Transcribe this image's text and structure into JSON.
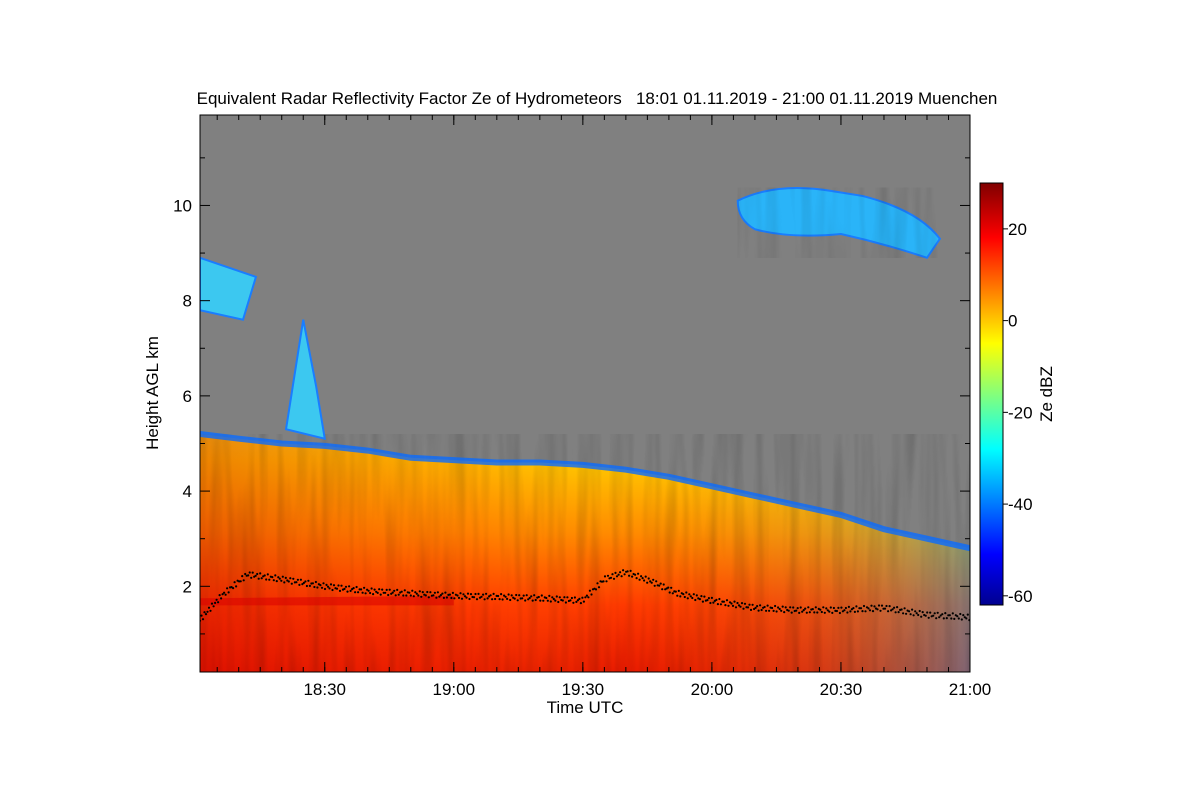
{
  "chart_data": {
    "type": "heatmap",
    "title": "Equivalent Radar Reflectivity Factor Ze of Hydrometeors   18:01 01.11.2019 - 21:00 01.11.2019 Muenchen",
    "xlabel": "Time UTC",
    "ylabel": "Height AGL km",
    "x_start_min": 1081,
    "x_end_min": 1260,
    "x_ticks": [
      {
        "value": 1110,
        "label": "18:30"
      },
      {
        "value": 1140,
        "label": "19:00"
      },
      {
        "value": 1170,
        "label": "19:30"
      },
      {
        "value": 1200,
        "label": "20:00"
      },
      {
        "value": 1230,
        "label": "20:30"
      },
      {
        "value": 1260,
        "label": "21:00"
      }
    ],
    "ylim": [
      0.2,
      11.9
    ],
    "y_ticks": [
      2,
      4,
      6,
      8,
      10
    ],
    "colorbar": {
      "label": "Ze dBZ",
      "range": [
        -62,
        30
      ],
      "ticks": [
        -60,
        -40,
        -20,
        0,
        20
      ]
    },
    "no_echo_color": "#808080",
    "echo_top_km": [
      [
        1081,
        5.2
      ],
      [
        1090,
        5.1
      ],
      [
        1100,
        5.0
      ],
      [
        1110,
        4.95
      ],
      [
        1120,
        4.85
      ],
      [
        1130,
        4.7
      ],
      [
        1140,
        4.65
      ],
      [
        1150,
        4.6
      ],
      [
        1160,
        4.6
      ],
      [
        1170,
        4.55
      ],
      [
        1180,
        4.45
      ],
      [
        1190,
        4.3
      ],
      [
        1200,
        4.1
      ],
      [
        1210,
        3.9
      ],
      [
        1220,
        3.7
      ],
      [
        1230,
        3.5
      ],
      [
        1240,
        3.2
      ],
      [
        1250,
        3.0
      ],
      [
        1260,
        2.8
      ]
    ],
    "cirrus_layer": {
      "time_range": [
        1206,
        1260
      ],
      "height_range_km": [
        8.9,
        10.5
      ],
      "ze_range_dbz": [
        -40,
        -25
      ]
    },
    "melting_layer_km": [
      [
        1081,
        1.3
      ],
      [
        1086,
        1.8
      ],
      [
        1092,
        2.25
      ],
      [
        1100,
        2.15
      ],
      [
        1110,
        2.0
      ],
      [
        1120,
        1.9
      ],
      [
        1130,
        1.85
      ],
      [
        1140,
        1.8
      ],
      [
        1150,
        1.78
      ],
      [
        1160,
        1.75
      ],
      [
        1170,
        1.7
      ],
      [
        1175,
        2.15
      ],
      [
        1180,
        2.3
      ],
      [
        1186,
        2.1
      ],
      [
        1192,
        1.85
      ],
      [
        1200,
        1.7
      ],
      [
        1210,
        1.55
      ],
      [
        1220,
        1.5
      ],
      [
        1230,
        1.5
      ],
      [
        1240,
        1.55
      ],
      [
        1250,
        1.4
      ],
      [
        1260,
        1.35
      ]
    ]
  }
}
